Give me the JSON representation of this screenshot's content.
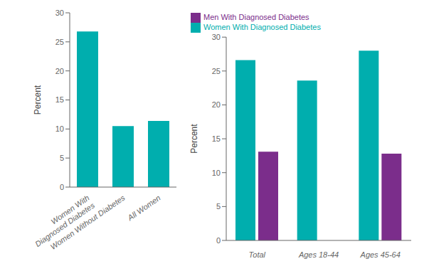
{
  "chart_data": [
    {
      "type": "bar",
      "categories": [
        "Women With\nDiagnosed Diabetes",
        "Women Without Diabetes",
        "All Women"
      ],
      "values": [
        26.8,
        10.5,
        11.4
      ],
      "color": "#00AEAE",
      "ylabel": "Percent",
      "ylim": [
        0,
        30
      ],
      "yticks": [
        0,
        5,
        10,
        15,
        20,
        25,
        30
      ],
      "grid": false
    },
    {
      "type": "bar",
      "categories": [
        "Total",
        "Ages 18-44",
        "Ages 45-64"
      ],
      "series": [
        {
          "name": "Women With Diagnosed Diabetes",
          "color": "#00AEAE",
          "values": [
            26.6,
            23.6,
            28.0
          ]
        },
        {
          "name": "Men With Diagnosed Diabetes",
          "color": "#7B2D8B",
          "values": [
            13.1,
            null,
            12.8
          ]
        }
      ],
      "ylabel": "Percent",
      "ylim": [
        0,
        30
      ],
      "yticks": [
        0,
        5,
        10,
        15,
        20,
        25,
        30
      ],
      "grid": false,
      "legend": "upper left"
    }
  ]
}
